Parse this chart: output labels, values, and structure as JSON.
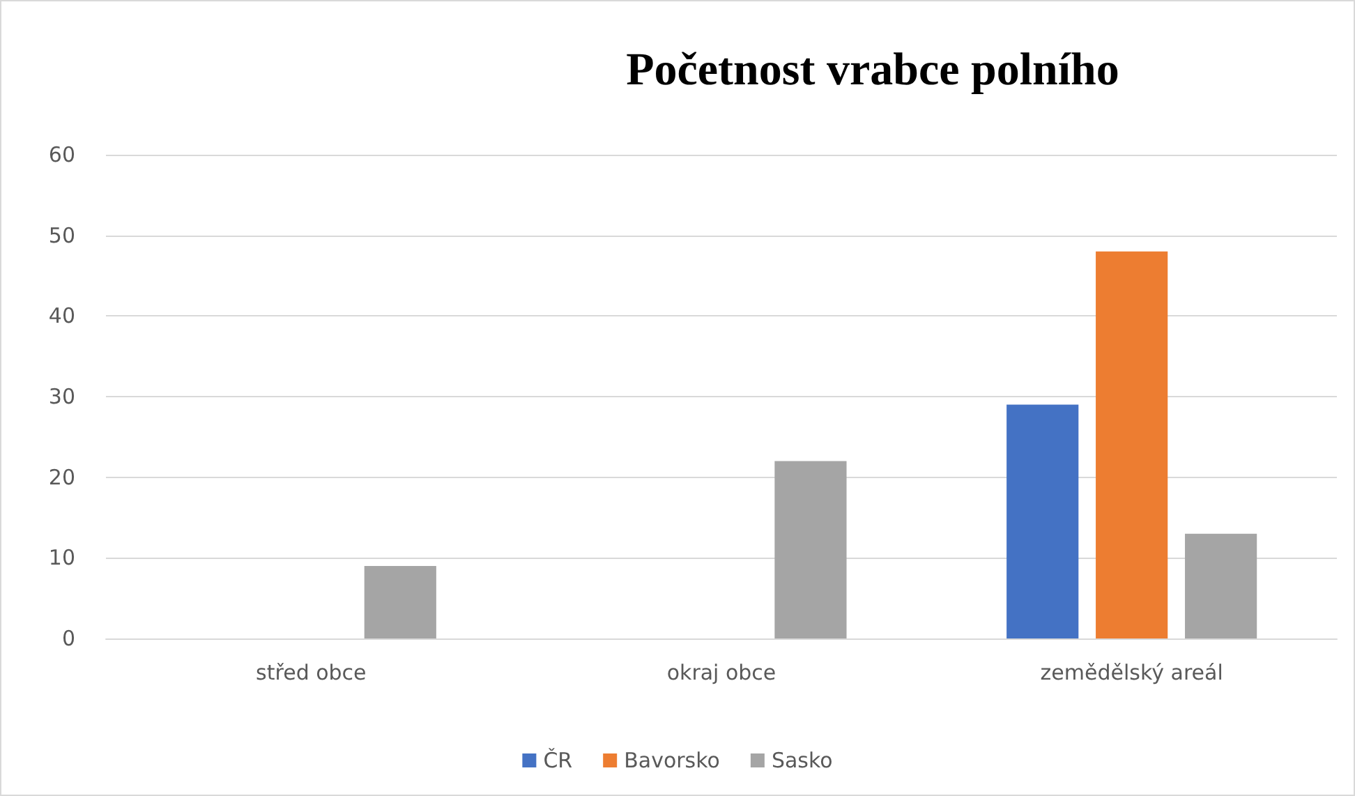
{
  "chart_data": {
    "type": "bar",
    "title": "Početnost vrabce polního",
    "categories": [
      "střed obce",
      "okraj obce",
      "zemědělský areál"
    ],
    "series": [
      {
        "name": "ČR",
        "color": "#4472c4",
        "values": [
          0,
          0,
          29
        ]
      },
      {
        "name": "Bavorsko",
        "color": "#ed7d31",
        "values": [
          0,
          0,
          48
        ]
      },
      {
        "name": "Sasko",
        "color": "#a5a5a5",
        "values": [
          9,
          22,
          13
        ]
      }
    ],
    "ylim": [
      0,
      60
    ],
    "yticks": [
      0,
      10,
      20,
      30,
      40,
      50,
      60
    ],
    "grid": "y",
    "legend": "bottom"
  }
}
